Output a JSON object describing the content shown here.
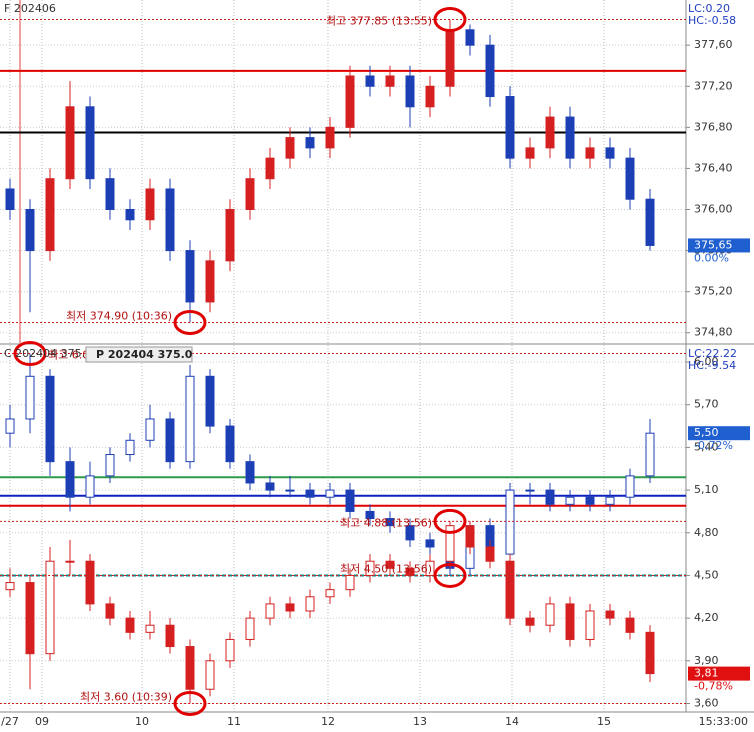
{
  "chart_data": [
    {
      "type": "candlestick",
      "title": "F 202406",
      "lc": "LC:0.20",
      "hc": "HC:-0.58",
      "ylim": [
        374.7,
        378.04
      ],
      "yticks": [
        {
          "value": 374.8,
          "label": "374,80"
        },
        {
          "value": 375.2,
          "label": "375,20"
        },
        {
          "value": 375.6,
          "label": "375,60"
        },
        {
          "value": 376.0,
          "label": "376,00"
        },
        {
          "value": 376.4,
          "label": "376,40"
        },
        {
          "value": 376.8,
          "label": "376,80"
        },
        {
          "value": 377.2,
          "label": "377,20"
        },
        {
          "value": 377.6,
          "label": "377,60"
        }
      ],
      "grid": true,
      "ref_lines": [
        {
          "value": 377.35,
          "color": "#e00000"
        },
        {
          "value": 376.75,
          "color": "#000000"
        }
      ],
      "series": [
        {
          "up_color": "#d42020",
          "down_color": "#1c3fb5",
          "hollow_up": false,
          "open": [
            376.2,
            376.0,
            375.6,
            376.3,
            377.0,
            376.3,
            376.0,
            375.9,
            376.2,
            375.6,
            375.1,
            375.5,
            376.0,
            376.3,
            376.5,
            376.7,
            376.6,
            376.8,
            377.3,
            377.2,
            377.3,
            377.0,
            377.2,
            377.75,
            377.6,
            377.1,
            376.5,
            376.6,
            376.9,
            376.5,
            376.6,
            376.5,
            376.1
          ],
          "high": [
            376.3,
            376.1,
            376.4,
            377.25,
            377.1,
            376.4,
            376.1,
            376.3,
            376.3,
            375.7,
            375.6,
            376.1,
            376.4,
            376.6,
            376.8,
            376.8,
            376.9,
            377.4,
            377.4,
            377.4,
            377.4,
            377.3,
            377.85,
            377.8,
            377.7,
            377.2,
            376.7,
            377.0,
            377.0,
            376.7,
            376.7,
            376.6,
            376.2
          ],
          "low": [
            375.9,
            375.0,
            375.5,
            376.2,
            376.2,
            375.9,
            375.8,
            375.8,
            375.5,
            374.9,
            375.0,
            375.4,
            375.9,
            376.2,
            376.4,
            376.5,
            376.5,
            376.7,
            377.1,
            377.1,
            376.8,
            376.9,
            377.1,
            377.5,
            377.0,
            376.4,
            376.4,
            376.5,
            376.4,
            376.4,
            376.4,
            376.0,
            375.6
          ],
          "close": [
            376.0,
            375.6,
            376.3,
            377.0,
            376.3,
            376.0,
            375.9,
            376.2,
            375.6,
            375.1,
            375.5,
            376.0,
            376.3,
            376.5,
            376.7,
            376.6,
            376.8,
            377.3,
            377.2,
            377.3,
            377.0,
            377.2,
            377.75,
            377.6,
            377.1,
            376.5,
            376.6,
            376.9,
            376.5,
            376.6,
            376.5,
            376.1,
            375.65
          ],
          "last": {
            "value": 375.65,
            "label": "375,65",
            "change": "0.00%",
            "box": "#1f5fd0"
          }
        }
      ],
      "notes": [
        {
          "text": "최고 377.85 (13:55)",
          "value": 377.85,
          "index": 22,
          "side": "left"
        },
        {
          "text": "최저 374.90 (10:36)",
          "value": 374.9,
          "index": 9,
          "side": "left"
        }
      ]
    },
    {
      "type": "candlestick",
      "title": "C 202404 375.0",
      "subtitle": "P 202404 375.0",
      "lc": "LC:22.22",
      "hc": "HC:-9.54",
      "ylim": [
        3.54,
        6.12
      ],
      "yticks": [
        {
          "value": 3.6,
          "label": "3,60"
        },
        {
          "value": 3.9,
          "label": "3,90"
        },
        {
          "value": 4.2,
          "label": "4,20"
        },
        {
          "value": 4.5,
          "label": "4,50"
        },
        {
          "value": 4.8,
          "label": "4,80"
        },
        {
          "value": 5.1,
          "label": "5,10"
        },
        {
          "value": 5.4,
          "label": "5,40"
        },
        {
          "value": 5.7,
          "label": "5,70"
        },
        {
          "value": 6.0,
          "label": "6,00"
        }
      ],
      "grid": true,
      "ref_lines": [
        {
          "value": 5.19,
          "color": "#2e9a4a"
        },
        {
          "value": 5.06,
          "color": "#1020c0"
        },
        {
          "value": 4.99,
          "color": "#e00000"
        },
        {
          "value": 4.5,
          "color": "#0c8a8a"
        }
      ],
      "series": [
        {
          "up_color": "#1c3fb5",
          "down_color": "#1c3fb5",
          "hollow_up": true,
          "open": [
            5.5,
            5.6,
            5.9,
            5.3,
            5.05,
            5.2,
            5.35,
            5.45,
            5.6,
            5.3,
            5.9,
            5.55,
            5.3,
            5.15,
            5.1,
            5.1,
            5.05,
            5.1,
            4.95,
            4.9,
            4.85,
            4.75,
            4.7,
            4.55,
            4.85,
            4.65,
            5.1,
            5.1,
            5.0,
            5.05,
            5.0,
            5.05,
            5.2
          ],
          "high": [
            5.7,
            6.06,
            5.95,
            5.4,
            5.3,
            5.4,
            5.5,
            5.7,
            5.65,
            5.98,
            5.95,
            5.6,
            5.35,
            5.2,
            5.2,
            5.15,
            5.15,
            5.15,
            5.0,
            4.95,
            4.9,
            4.8,
            4.8,
            4.88,
            4.9,
            5.15,
            5.15,
            5.15,
            5.1,
            5.1,
            5.1,
            5.25,
            5.6
          ],
          "low": [
            5.4,
            5.5,
            5.2,
            4.95,
            5.0,
            5.15,
            5.3,
            5.4,
            5.25,
            5.25,
            5.5,
            5.25,
            5.1,
            5.05,
            5.05,
            5.0,
            5.0,
            4.9,
            4.85,
            4.8,
            4.7,
            4.65,
            4.5,
            4.5,
            4.6,
            4.6,
            5.0,
            4.95,
            4.95,
            4.95,
            4.95,
            5.0,
            5.15
          ],
          "close": [
            5.6,
            5.9,
            5.3,
            5.05,
            5.2,
            5.35,
            5.45,
            5.6,
            5.3,
            5.9,
            5.55,
            5.3,
            5.15,
            5.1,
            5.1,
            5.05,
            5.1,
            4.95,
            4.9,
            4.85,
            4.75,
            4.7,
            4.55,
            4.85,
            4.65,
            5.1,
            5.1,
            5.0,
            5.05,
            5.0,
            5.05,
            5.2,
            5.5
          ],
          "last": {
            "value": 5.5,
            "label": "5,50",
            "change": "-0,72%",
            "box": "#1f5fd0"
          }
        },
        {
          "up_color": "#d42020",
          "down_color": "#d42020",
          "hollow_up": true,
          "open": [
            4.4,
            4.45,
            3.95,
            4.6,
            4.6,
            4.3,
            4.2,
            4.1,
            4.15,
            4.0,
            3.7,
            3.9,
            4.05,
            4.2,
            4.3,
            4.25,
            4.35,
            4.4,
            4.5,
            4.6,
            4.55,
            4.5,
            4.6,
            4.85,
            4.7,
            4.6,
            4.2,
            4.15,
            4.3,
            4.05,
            4.25,
            4.2,
            4.1
          ],
          "high": [
            4.55,
            4.5,
            4.7,
            4.75,
            4.65,
            4.35,
            4.25,
            4.25,
            4.2,
            4.05,
            3.95,
            4.1,
            4.25,
            4.35,
            4.35,
            4.4,
            4.45,
            4.55,
            4.65,
            4.65,
            4.6,
            4.65,
            4.88,
            4.88,
            4.75,
            4.65,
            4.25,
            4.35,
            4.35,
            4.3,
            4.3,
            4.25,
            4.15
          ],
          "low": [
            4.35,
            3.7,
            3.9,
            4.5,
            4.25,
            4.15,
            4.05,
            4.05,
            3.95,
            3.6,
            3.65,
            3.85,
            4.0,
            4.15,
            4.2,
            4.2,
            4.3,
            4.35,
            4.45,
            4.5,
            4.45,
            4.45,
            4.55,
            4.65,
            4.55,
            4.15,
            4.1,
            4.1,
            4.0,
            4.0,
            4.15,
            4.05,
            3.75
          ],
          "close": [
            4.45,
            3.95,
            4.6,
            4.6,
            4.3,
            4.2,
            4.1,
            4.15,
            4.0,
            3.7,
            3.9,
            4.05,
            4.2,
            4.3,
            4.25,
            4.35,
            4.4,
            4.5,
            4.6,
            4.55,
            4.5,
            4.6,
            4.85,
            4.7,
            4.6,
            4.2,
            4.15,
            4.3,
            4.05,
            4.25,
            4.2,
            4.1,
            3.81
          ],
          "last": {
            "value": 3.81,
            "label": "3,81",
            "change": "-0,78%",
            "box": "#e01010"
          }
        }
      ],
      "notes": [
        {
          "text": "최고 6.06 (09:00)",
          "value": 6.06,
          "index": 1,
          "side": "right"
        },
        {
          "text": "최저 3.60 (10:39)",
          "value": 3.6,
          "index": 9,
          "side": "left"
        },
        {
          "text": "최고 4.88 (13:56)",
          "value": 4.88,
          "index": 22,
          "side": "left"
        },
        {
          "text": "최저 4.50 (13:56)",
          "value": 4.5,
          "index": 22,
          "side": "left"
        }
      ],
      "xticks": [
        {
          "value": 0,
          "label": "/27"
        },
        {
          "value": 1.6,
          "label": "09"
        },
        {
          "value": 6.6,
          "label": "10"
        },
        {
          "value": 11.2,
          "label": "11"
        },
        {
          "value": 15.9,
          "label": "12"
        },
        {
          "value": 20.5,
          "label": "13"
        },
        {
          "value": 25.1,
          "label": "14"
        },
        {
          "value": 29.7,
          "label": "15"
        }
      ],
      "time": "15:33:00"
    }
  ]
}
